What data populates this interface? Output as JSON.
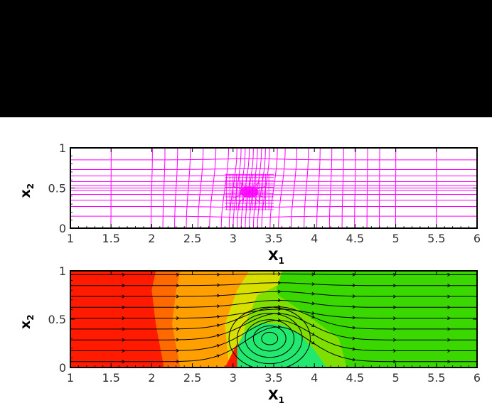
{
  "chart_data": [
    {
      "type": "mesh",
      "xlabel": "X",
      "xlabel_sub": "1",
      "ylabel": "x",
      "ylabel_sub": "2",
      "xlim": [
        1,
        6
      ],
      "ylim": [
        0,
        1
      ],
      "xticks": [
        "1",
        "1.5",
        "2",
        "2.5",
        "3",
        "3.5",
        "4",
        "4.5",
        "5",
        "5.5",
        "6"
      ],
      "yticks": [
        "0",
        "0.5",
        "1"
      ],
      "mesh_color": "#ff00ff",
      "mesh_columns_x": [
        1.5,
        2.0,
        2.15,
        2.3,
        2.45,
        2.6,
        2.75,
        2.9,
        3.0,
        3.05,
        3.1,
        3.15,
        3.2,
        3.25,
        3.3,
        3.35,
        3.4,
        3.5,
        3.6,
        3.75,
        3.9,
        4.05,
        4.2,
        4.35,
        4.5,
        4.65,
        4.8,
        5.0,
        5.5
      ],
      "mesh_rows_y": [
        0.15,
        0.27,
        0.35,
        0.42,
        0.47,
        0.5,
        0.53,
        0.58,
        0.65,
        0.73,
        0.85
      ],
      "mesh_refinement_center": [
        3.2,
        0.45
      ]
    },
    {
      "type": "contour",
      "xlabel": "X",
      "xlabel_sub": "1",
      "ylabel": "x",
      "ylabel_sub": "2",
      "xlim": [
        1,
        6
      ],
      "ylim": [
        0,
        1
      ],
      "xticks": [
        "1",
        "1.5",
        "2",
        "2.5",
        "3",
        "3.5",
        "4",
        "4.5",
        "5",
        "5.5",
        "6"
      ],
      "yticks": [
        "0",
        "0.5",
        "1"
      ],
      "colormap": [
        "#ff1a00",
        "#ff6a00",
        "#ffa000",
        "#d8e000",
        "#7fe000",
        "#3ad800",
        "#22e870"
      ],
      "recirculation_eye": [
        3.45,
        0.3
      ],
      "streamline_count": 9,
      "streamline_arrows_x": [
        1.7,
        2.35,
        2.8,
        3.6,
        4.0,
        4.5,
        5.0,
        5.7
      ]
    }
  ]
}
